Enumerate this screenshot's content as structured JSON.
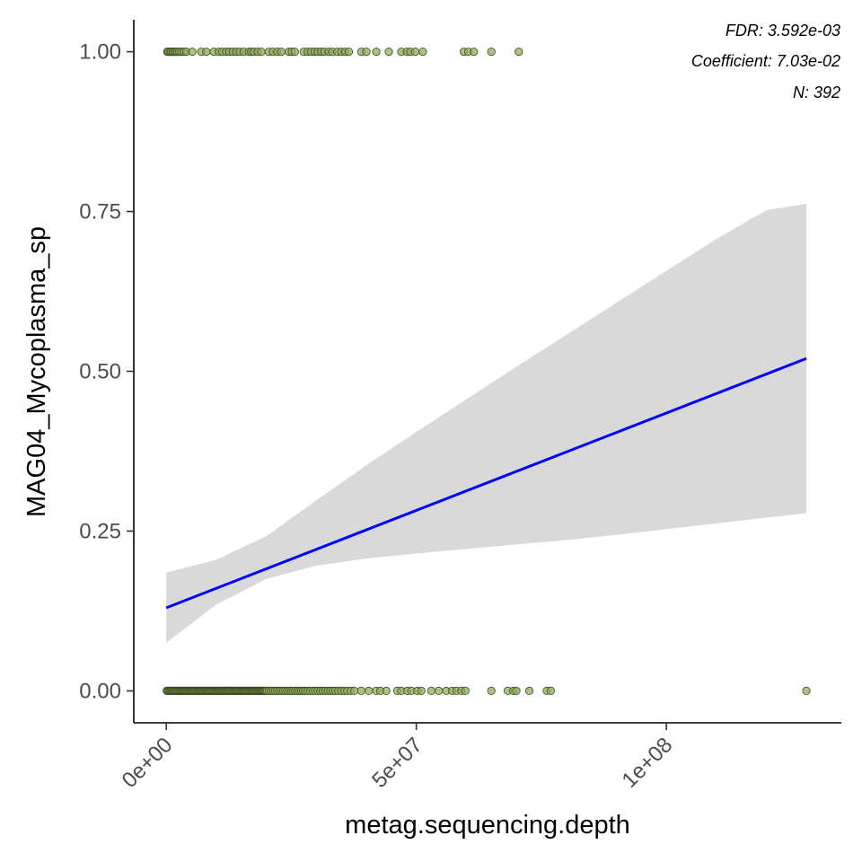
{
  "chart_data": {
    "type": "scatter",
    "title": "",
    "xlabel": "metag.sequencing.depth",
    "ylabel": "MAG04_Mycoplasma_sp",
    "xlim": [
      -6500000,
      135000000
    ],
    "ylim": [
      -0.05,
      1.05
    ],
    "x_ticks": [
      0,
      50000000,
      100000000
    ],
    "x_tick_labels": [
      "0e+00",
      "5e+07",
      "1e+08"
    ],
    "y_ticks": [
      0,
      0.25,
      0.5,
      0.75,
      1.0
    ],
    "y_tick_labels": [
      "0.00",
      "0.25",
      "0.50",
      "0.75",
      "1.00"
    ],
    "grid": false,
    "annotations": [
      "FDR: 3.592e-03",
      "Coefficient: 7.03e-02",
      "N: 392"
    ],
    "colors": {
      "points_fill": "#8fac5e",
      "points_stroke": "#3a4a1f",
      "fit_line": "#0000ff",
      "confidence_band": "#d9d9d9",
      "axis": "#000000"
    },
    "points_y1_x": [
      200000,
      400000,
      700000,
      1000000,
      1300000,
      1600000,
      1900000,
      2200000,
      2600000,
      3000000,
      3500000,
      4000000,
      5200000,
      7000000,
      8000000,
      9500000,
      10500000,
      11200000,
      12000000,
      12600000,
      13300000,
      14000000,
      14700000,
      15500000,
      16500000,
      17000000,
      17500000,
      18300000,
      19000000,
      20500000,
      21300000,
      22200000,
      23000000,
      24500000,
      25100000,
      25700000,
      27500000,
      28300000,
      29000000,
      29700000,
      30300000,
      31000000,
      31600000,
      32500000,
      33200000,
      34200000,
      35000000,
      35800000,
      36500000,
      39000000,
      40000000,
      42000000,
      44500000,
      47000000,
      48100000,
      48800000,
      49800000,
      51300000,
      59500000,
      60400000,
      61500000,
      65000000,
      70500000
    ],
    "points_y0_x": [
      100000,
      300000,
      500000,
      700000,
      900000,
      1100000,
      1300000,
      1500000,
      1700000,
      1900000,
      2100000,
      2300000,
      2500000,
      2700000,
      2900000,
      3100000,
      3300000,
      3500000,
      3700000,
      3900000,
      4100000,
      4300000,
      4500000,
      4700000,
      4900000,
      5100000,
      5300000,
      5500000,
      5700000,
      5900000,
      6100000,
      6300000,
      6500000,
      6700000,
      6900000,
      7100000,
      7300000,
      7500000,
      7700000,
      7900000,
      8100000,
      8300000,
      8500000,
      8700000,
      8900000,
      9100000,
      9300000,
      9500000,
      9700000,
      9900000,
      10100000,
      10300000,
      10500000,
      10700000,
      10900000,
      11100000,
      11300000,
      11500000,
      11700000,
      11900000,
      12100000,
      12300000,
      12500000,
      12700000,
      12900000,
      13100000,
      13300000,
      13500000,
      13700000,
      13900000,
      14100000,
      14300000,
      14500000,
      14700000,
      14900000,
      15100000,
      15300000,
      15500000,
      15700000,
      15900000,
      16100000,
      16300000,
      16500000,
      16700000,
      16900000,
      17100000,
      17300000,
      17500000,
      17700000,
      17900000,
      18100000,
      18300000,
      18500000,
      18700000,
      18900000,
      19100000,
      19300000,
      19500000,
      19700000,
      19900000,
      20200000,
      20600000,
      21000000,
      21400000,
      21800000,
      22200000,
      22600000,
      23000000,
      23400000,
      23800000,
      24200000,
      24600000,
      25000000,
      25400000,
      25800000,
      26200000,
      26600000,
      27000000,
      27400000,
      27800000,
      28300000,
      28800000,
      29300000,
      29800000,
      30300000,
      30800000,
      31300000,
      31800000,
      32300000,
      32800000,
      33300000,
      33800000,
      34400000,
      35000000,
      35600000,
      36200000,
      36900000,
      37600000,
      39000000,
      40500000,
      42000000,
      42800000,
      44000000,
      46200000,
      47000000,
      48200000,
      49000000,
      50200000,
      51000000,
      53000000,
      54500000,
      56000000,
      57200000,
      58000000,
      59000000,
      59800000,
      65000000,
      68300000,
      69400000,
      70000000,
      72600000,
      76100000,
      76900000,
      128000000
    ],
    "fit_line": {
      "x": [
        0,
        128000000
      ],
      "y": [
        0.13,
        0.52
      ]
    },
    "confidence_band": {
      "x": [
        0,
        10000000,
        20000000,
        30000000,
        40000000,
        50000000,
        60000000,
        70000000,
        80000000,
        90000000,
        100000000,
        110000000,
        120000000,
        128000000
      ],
      "lower": [
        0.075,
        0.135,
        0.175,
        0.196,
        0.207,
        0.215,
        0.222,
        0.229,
        0.236,
        0.244,
        0.253,
        0.262,
        0.271,
        0.278
      ],
      "upper": [
        0.185,
        0.205,
        0.242,
        0.298,
        0.353,
        0.405,
        0.456,
        0.507,
        0.557,
        0.607,
        0.657,
        0.707,
        0.752,
        0.762
      ]
    }
  }
}
